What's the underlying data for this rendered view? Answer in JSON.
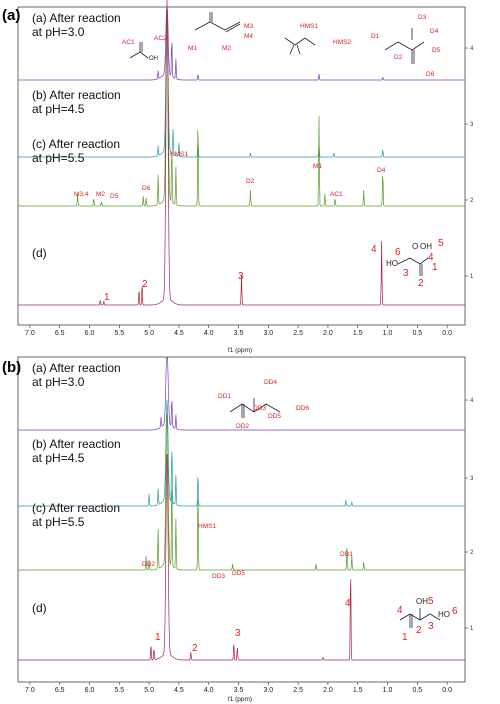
{
  "chart_data": [
    {
      "type": "line",
      "panel_label": "(a)",
      "xlabel": "f1 (ppm)",
      "x_range": [
        7.2,
        -0.3
      ],
      "x_ticks": [
        "7.0",
        "6.5",
        "6.0",
        "5.5",
        "5.0",
        "4.5",
        "4.0",
        "3.5",
        "3.0",
        "2.5",
        "2.0",
        "1.5",
        "1.0",
        "0.5",
        "0.0"
      ],
      "right_ticks": [
        "4",
        "3",
        "2",
        "1"
      ],
      "series": [
        {
          "name": "(a) After reaction\nat pH=3.0",
          "label_lines": [
            "(a) After reaction",
            "at pH=3.0"
          ],
          "color": "#7b3fbf",
          "baseline": 80,
          "peaks": [
            [
              4.7,
              72
            ],
            [
              4.62,
              40
            ],
            [
              4.55,
              20
            ],
            [
              4.85,
              8
            ],
            [
              4.18,
              6
            ],
            [
              2.15,
              6
            ],
            [
              1.08,
              3
            ]
          ]
        },
        {
          "name": "(b) After reaction\nat pH=4.5",
          "label_lines": [
            "(b) After reaction",
            "at pH=4.5"
          ],
          "color": "#2a9aa8",
          "baseline": 157,
          "peaks": [
            [
              4.7,
              140
            ],
            [
              4.6,
              25
            ],
            [
              4.5,
              14
            ],
            [
              4.85,
              10
            ],
            [
              4.18,
              16
            ],
            [
              2.15,
              14
            ],
            [
              1.08,
              8
            ],
            [
              1.9,
              4
            ],
            [
              3.3,
              4
            ]
          ]
        },
        {
          "name": "(c) After reaction\nat pH=5.5",
          "label_lines": [
            "(c) After reaction",
            "at pH=5.5"
          ],
          "color": "#5a9a2e",
          "baseline": 206,
          "peaks": [
            [
              4.7,
              195
            ],
            [
              4.62,
              60
            ],
            [
              4.55,
              38
            ],
            [
              4.85,
              30
            ],
            [
              4.18,
              90
            ],
            [
              2.15,
              90
            ],
            [
              1.08,
              36
            ],
            [
              6.2,
              12
            ],
            [
              5.93,
              8
            ],
            [
              5.8,
              4
            ],
            [
              5.1,
              10
            ],
            [
              5.05,
              8
            ],
            [
              3.3,
              16
            ],
            [
              2.05,
              12
            ],
            [
              1.88,
              8
            ],
            [
              1.4,
              16
            ]
          ]
        },
        {
          "name": "(d)",
          "label_lines": [
            "(d)"
          ],
          "color": "#a3283c",
          "baseline": 305,
          "peaks": [
            [
              4.7,
              300
            ],
            [
              5.17,
              16
            ],
            [
              5.12,
              22
            ],
            [
              5.82,
              5
            ],
            [
              5.76,
              4
            ],
            [
              3.45,
              30
            ],
            [
              1.1,
              64
            ]
          ]
        }
      ],
      "annotations": {
        "ac1": "AC1",
        "ac2": "AC2",
        "m1": "M1",
        "m2": "M2",
        "m3": "M3",
        "m4": "M4",
        "hms1": "HMS1",
        "hms2": "HMS2",
        "oh": "OH",
        "d1": "D1",
        "d2": "D2",
        "d3": "D3",
        "d4": "D4",
        "d5": "D5",
        "d6": "D6",
        "c_m34": "M3,4",
        "c_m2": "M2",
        "c_d5": "D5",
        "c_d6": "D6",
        "c_hms1": "HMS1",
        "c_m1": "M1",
        "c_d2": "D2",
        "c_ac1": "AC1",
        "c_d4": "D4",
        "n1": "1",
        "n2": "2",
        "n3": "3",
        "n4": "4",
        "n5": "5",
        "n6": "6",
        "o": "O",
        "oh1": "OH",
        "ho": "HO"
      }
    },
    {
      "type": "line",
      "panel_label": "(b)",
      "xlabel": "f1 (ppm)",
      "x_range": [
        7.2,
        -0.3
      ],
      "x_ticks": [
        "7.0",
        "6.5",
        "6.0",
        "5.5",
        "5.0",
        "4.5",
        "4.0",
        "3.5",
        "3.0",
        "2.5",
        "2.0",
        "1.5",
        "1.0",
        "0.5",
        "0.0"
      ],
      "right_ticks": [
        "4",
        "3",
        "2",
        "1"
      ],
      "series": [
        {
          "name": "(a) After reaction\nat pH=3.0",
          "label_lines": [
            "(a) After reaction",
            "at pH=3.0"
          ],
          "color": "#7b3fbf",
          "baseline": 430,
          "peaks": [
            [
              4.7,
              80
            ],
            [
              4.62,
              30
            ],
            [
              4.8,
              10
            ],
            [
              4.55,
              14
            ]
          ]
        },
        {
          "name": "(b) After reaction\nat pH=4.5",
          "label_lines": [
            "(b) After reaction",
            "at pH=4.5"
          ],
          "color": "#2a9aa8",
          "baseline": 506,
          "peaks": [
            [
              4.7,
              100
            ],
            [
              4.62,
              60
            ],
            [
              4.55,
              30
            ],
            [
              4.85,
              16
            ],
            [
              4.18,
              34
            ],
            [
              5.0,
              12
            ],
            [
              1.7,
              6
            ],
            [
              1.6,
              4
            ]
          ]
        },
        {
          "name": "(c) After reaction\nat pH=5.5",
          "label_lines": [
            "(c) After reaction",
            "at pH=5.5"
          ],
          "color": "#5a9a2e",
          "baseline": 570,
          "peaks": [
            [
              4.7,
              150
            ],
            [
              4.62,
              90
            ],
            [
              4.55,
              50
            ],
            [
              4.85,
              40
            ],
            [
              4.18,
              84
            ],
            [
              5.05,
              14
            ],
            [
              5.0,
              10
            ],
            [
              1.68,
              26
            ],
            [
              1.6,
              14
            ],
            [
              3.6,
              6
            ],
            [
              2.2,
              6
            ],
            [
              1.4,
              8
            ]
          ]
        },
        {
          "name": "(d)",
          "label_lines": [
            "(d)"
          ],
          "color": "#a3283c",
          "baseline": 660,
          "peaks": [
            [
              4.7,
              200
            ],
            [
              4.97,
              16
            ],
            [
              4.92,
              12
            ],
            [
              4.3,
              8
            ],
            [
              3.58,
              18
            ],
            [
              3.52,
              14
            ],
            [
              1.62,
              96
            ],
            [
              2.08,
              3
            ]
          ]
        }
      ],
      "annotations": {
        "dd1": "DD1",
        "dd2": "DD2",
        "dd3": "DD3",
        "dd4": "DD4",
        "dd5": "DD5",
        "dd6": "DD6",
        "c_hms1": "HMS1",
        "c_dd2": "DD2",
        "c_dd3": "DD3",
        "c_dd5": "DD5",
        "c_dd1": "DD1",
        "n1": "1",
        "n2": "2",
        "n3": "3",
        "n4": "4",
        "n5": "5",
        "n6": "6",
        "oh": "OH",
        "ho": "HO"
      }
    }
  ]
}
